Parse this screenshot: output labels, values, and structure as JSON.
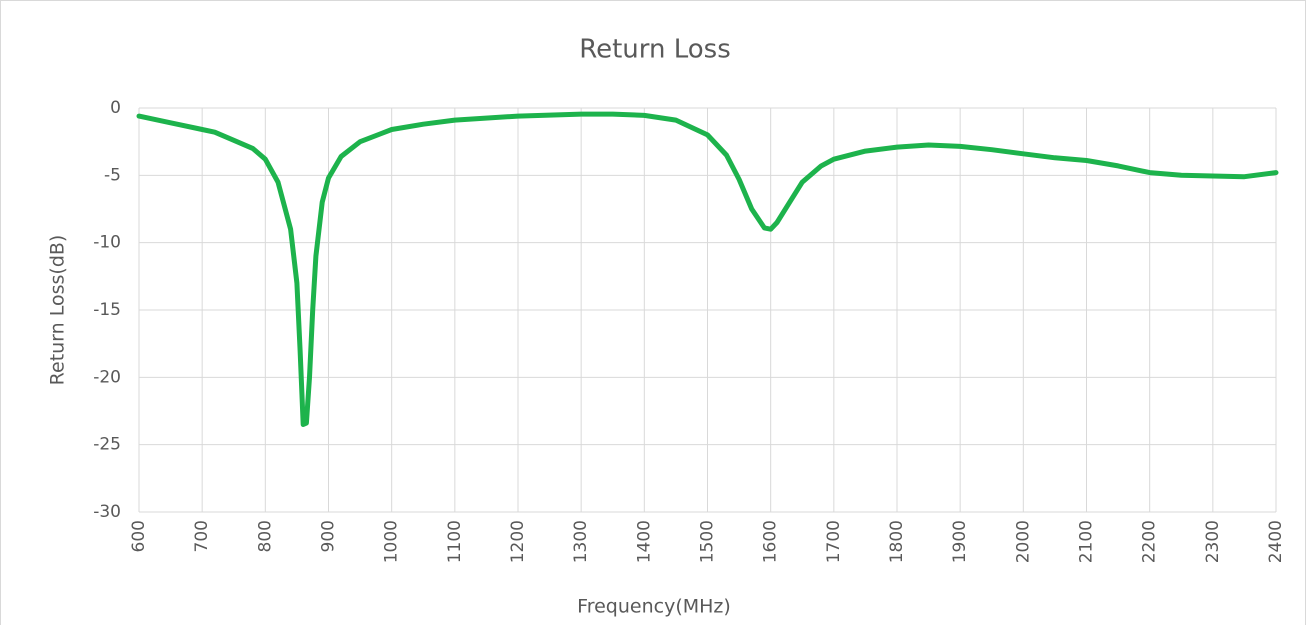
{
  "chart_data": {
    "type": "line",
    "title": "Return Loss",
    "x_label": "Frequency(MHz)",
    "y_label": "Return Loss(dB)",
    "x": [
      600,
      650,
      700,
      720,
      750,
      780,
      800,
      820,
      840,
      850,
      855,
      860,
      865,
      870,
      875,
      880,
      890,
      900,
      920,
      950,
      1000,
      1050,
      1100,
      1200,
      1300,
      1350,
      1400,
      1450,
      1500,
      1530,
      1550,
      1570,
      1590,
      1600,
      1610,
      1630,
      1650,
      1680,
      1700,
      1750,
      1800,
      1850,
      1900,
      1950,
      2000,
      2050,
      2100,
      2150,
      2200,
      2250,
      2300,
      2350,
      2400
    ],
    "values": [
      -0.6,
      -1.1,
      -1.6,
      -1.8,
      -2.4,
      -3.0,
      -3.8,
      -5.5,
      -9,
      -13,
      -18,
      -23.5,
      -23.4,
      -20,
      -15,
      -11,
      -7,
      -5.2,
      -3.6,
      -2.5,
      -1.6,
      -1.2,
      -0.9,
      -0.6,
      -0.45,
      -0.45,
      -0.55,
      -0.9,
      -2,
      -3.5,
      -5.3,
      -7.5,
      -8.9,
      -9.0,
      -8.5,
      -7,
      -5.5,
      -4.3,
      -3.8,
      -3.2,
      -2.9,
      -2.75,
      -2.85,
      -3.1,
      -3.4,
      -3.7,
      -3.9,
      -4.3,
      -4.8,
      -5.0,
      -5.05,
      -5.1,
      -4.8
    ],
    "color": "#1db34c",
    "xlim": [
      600,
      2400
    ],
    "xticks": [
      600,
      700,
      800,
      900,
      1000,
      1100,
      1200,
      1300,
      1400,
      1500,
      1600,
      1700,
      1800,
      1900,
      2000,
      2100,
      2200,
      2300,
      2400
    ],
    "ylim": [
      -30,
      0
    ],
    "yticks": [
      0,
      -5,
      -10,
      -15,
      -20,
      -25,
      -30
    ],
    "grid": true
  }
}
